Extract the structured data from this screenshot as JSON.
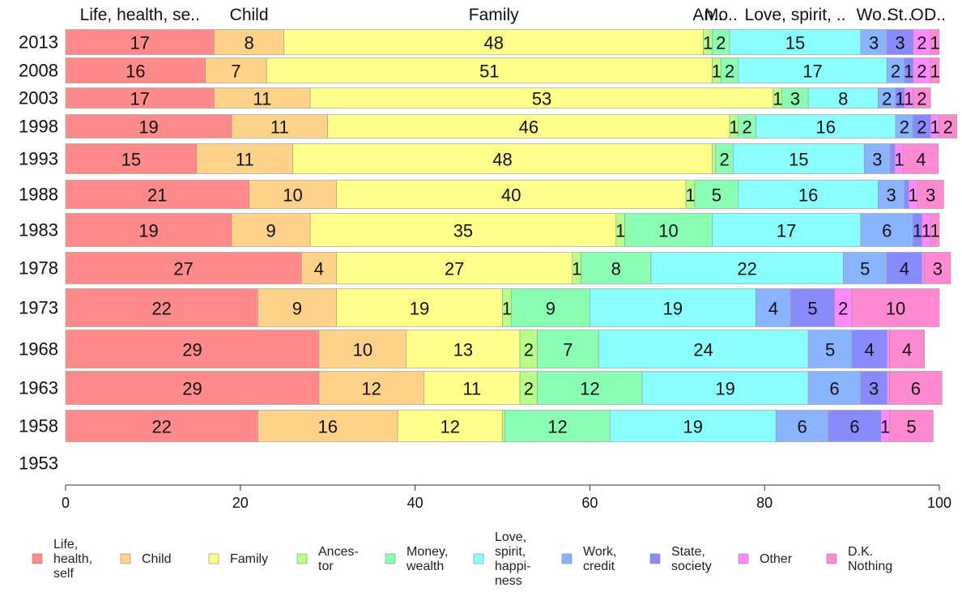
{
  "chart_data": {
    "type": "bar",
    "orientation": "horizontal",
    "stacked": true,
    "xlim": [
      0,
      100
    ],
    "xticks": [
      0,
      20,
      40,
      60,
      80,
      100
    ],
    "grid": false,
    "legend_position": "bottom",
    "categories": [
      "2013",
      "2008",
      "2003",
      "1998",
      "1993",
      "1988",
      "1983",
      "1978",
      "1973",
      "1968",
      "1963",
      "1958",
      "1953"
    ],
    "top_labels": [
      "Life, health, se..",
      "Child",
      "Family",
      "An..",
      "Mo..",
      "Love, spirit, ..",
      "Wo..",
      "St..",
      "O..",
      "D.."
    ],
    "series": [
      {
        "name": "Life,\nhealth,\nself",
        "color": "#FF8A8A",
        "values": [
          17,
          16,
          17,
          19,
          15,
          21,
          19,
          27,
          22,
          29,
          29,
          22,
          null
        ]
      },
      {
        "name": "Child",
        "color": "#FFD28A",
        "values": [
          8,
          7,
          11,
          11,
          11,
          10,
          9,
          4,
          9,
          10,
          12,
          16,
          null
        ]
      },
      {
        "name": "Family",
        "color": "#FFFF8A",
        "values": [
          48,
          51,
          53,
          46,
          48,
          40,
          35,
          27,
          19,
          13,
          11,
          12,
          null
        ]
      },
      {
        "name": "Ances-\ntor",
        "color": "#B8FF8A",
        "values": [
          1,
          1,
          1,
          1,
          0.4,
          1,
          1,
          1,
          1,
          2,
          2,
          0.3,
          null
        ]
      },
      {
        "name": "Money,\nwealth",
        "color": "#8AFFB4",
        "values": [
          2,
          2,
          3,
          2,
          2,
          5,
          10,
          8,
          9,
          7,
          12,
          12,
          null
        ]
      },
      {
        "name": "Love,\nspirit,\nhappi-\nness",
        "color": "#8AFFFF",
        "values": [
          15,
          17,
          8,
          16,
          15,
          16,
          17,
          22,
          19,
          24,
          19,
          19,
          null
        ]
      },
      {
        "name": "Work,\ncredit",
        "color": "#8AB4FF",
        "values": [
          3,
          2,
          2,
          2,
          3,
          3,
          6,
          5,
          4,
          5,
          6,
          6,
          null
        ]
      },
      {
        "name": "State,\nsociety",
        "color": "#8A8AFF",
        "values": [
          3,
          1,
          1,
          2,
          0.5,
          0.5,
          1,
          4,
          5,
          4,
          3,
          6,
          null
        ]
      },
      {
        "name": "Other",
        "color": "#FF8AFF",
        "values": [
          2,
          2,
          1,
          1,
          1,
          1,
          1,
          0.3,
          2,
          0.3,
          0.3,
          1,
          null
        ]
      },
      {
        "name": "D.K.\nNothing",
        "color": "#FF8AD2",
        "values": [
          1,
          1,
          2,
          2,
          4,
          3,
          1,
          3,
          10,
          4,
          6,
          5,
          null
        ]
      }
    ]
  }
}
